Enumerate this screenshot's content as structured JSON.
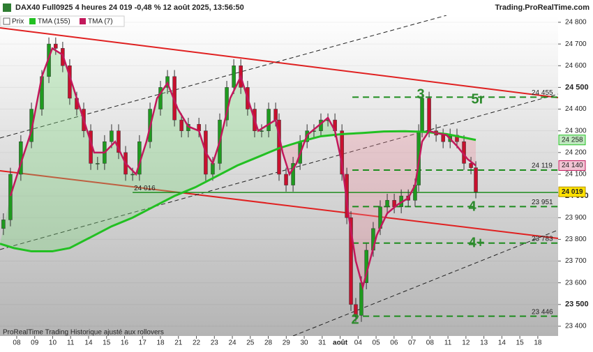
{
  "header": {
    "title": "DAX40 Full0925 4 heures 24 019 -0,48 % 12 août 2025, 13:56:50",
    "site": "Trading.ProRealTime.com"
  },
  "footer": "ProRealTime Trading  Historique ajusté aux rollovers",
  "chart_data": {
    "type": "candlestick",
    "name": "Prix",
    "up_color": "#1f9a1f",
    "down_color": "#c8102e",
    "x": [
      -0.74,
      -0.35,
      0.23,
      0.82,
      1.4,
      1.79,
      2.17,
      2.56,
      2.95,
      3.34,
      3.73,
      4.12,
      4.5,
      4.89,
      5.28,
      5.67,
      6.06,
      6.45,
      6.83,
      7.42,
      8.0,
      8.39,
      8.78,
      9.17,
      9.55,
      10.14,
      10.52,
      10.91,
      11.3,
      11.69,
      12.08,
      12.47,
      12.85,
      13.24,
      13.63,
      14.02,
      14.41,
      14.6,
      14.99,
      15.38,
      15.77,
      16.16,
      16.54,
      16.93,
      17.32,
      17.71,
      18.1,
      18.37,
      18.6,
      18.87,
      19.18,
      19.46,
      19.84,
      20.23,
      20.62,
      21.01,
      21.4,
      21.79,
      22.17,
      22.37,
      22.56,
      22.95,
      23.34,
      23.73,
      24.12,
      24.5,
      24.89,
      25.28,
      25.55
    ],
    "open": [
      23850,
      23890,
      24100,
      24250,
      24400,
      24550,
      24700,
      24680,
      24600,
      24450,
      24400,
      24300,
      24150,
      24150,
      24250,
      24300,
      24200,
      24100,
      24100,
      24250,
      24400,
      24500,
      24550,
      24350,
      24300,
      24330,
      24300,
      24100,
      24150,
      24350,
      24500,
      24600,
      24500,
      24400,
      24300,
      24300,
      24400,
      24350,
      24100,
      24050,
      24150,
      24250,
      24300,
      24300,
      24350,
      24350,
      24300,
      24100,
      23900,
      23500,
      23450,
      23600,
      23750,
      23850,
      23950,
      23980,
      23950,
      24000,
      23980,
      24050,
      24300,
      24450,
      24300,
      24280,
      24250,
      24280,
      24250,
      24150,
      24130
    ],
    "high": [
      23920,
      24130,
      24280,
      24430,
      24580,
      24730,
      24730,
      24710,
      24630,
      24480,
      24430,
      24330,
      24180,
      24280,
      24330,
      24330,
      24230,
      24130,
      24280,
      24430,
      24530,
      24580,
      24580,
      24380,
      24360,
      24360,
      24330,
      24180,
      24380,
      24530,
      24630,
      24630,
      24530,
      24430,
      24330,
      24430,
      24430,
      24380,
      24130,
      24180,
      24280,
      24330,
      24330,
      24380,
      24380,
      24380,
      24330,
      24130,
      23930,
      23530,
      23630,
      23780,
      23880,
      23980,
      24010,
      24010,
      24030,
      24030,
      24080,
      24330,
      24480,
      24480,
      24330,
      24310,
      24310,
      24310,
      24280,
      24180,
      24160
    ],
    "low": [
      23820,
      23860,
      24070,
      24220,
      24370,
      24520,
      24650,
      24570,
      24420,
      24370,
      24270,
      24120,
      24120,
      24120,
      24220,
      24170,
      24070,
      24070,
      24070,
      24220,
      24370,
      24470,
      24320,
      24270,
      24270,
      24270,
      24070,
      24070,
      24120,
      24320,
      24470,
      24470,
      24370,
      24270,
      24270,
      24270,
      24320,
      24070,
      24020,
      24020,
      24120,
      24220,
      24270,
      24270,
      24320,
      24270,
      24070,
      23870,
      23470,
      23420,
      23420,
      23570,
      23720,
      23820,
      23920,
      23920,
      23920,
      23950,
      23950,
      24020,
      24270,
      24270,
      24250,
      24220,
      24220,
      24220,
      24120,
      24100,
      23989
    ],
    "close": [
      23890,
      24100,
      24250,
      24400,
      24550,
      24700,
      24680,
      24600,
      24450,
      24400,
      24300,
      24150,
      24150,
      24250,
      24300,
      24200,
      24100,
      24100,
      24250,
      24400,
      24500,
      24550,
      24350,
      24300,
      24330,
      24300,
      24100,
      24150,
      24350,
      24500,
      24600,
      24500,
      24400,
      24300,
      24300,
      24400,
      24350,
      24100,
      24050,
      24150,
      24250,
      24300,
      24300,
      24350,
      24350,
      24300,
      24100,
      23900,
      23500,
      23450,
      23600,
      23750,
      23850,
      23950,
      23980,
      23950,
      24000,
      23980,
      24050,
      24300,
      24450,
      24300,
      24280,
      24250,
      24280,
      24250,
      24150,
      24130,
      24019
    ],
    "close_last_label": "24 019",
    "series": [
      {
        "name": "TMA (155)",
        "color": "#22c022",
        "box_color": "#bfe8bf",
        "last_label": "24 258",
        "x": [
          -0.93,
          -0.16,
          0.82,
          1.98,
          2.95,
          4.12,
          5.28,
          6.45,
          7.61,
          8.78,
          9.94,
          11.11,
          12.27,
          13.44,
          14.6,
          15.77,
          16.93,
          18.1,
          19.26,
          20.43,
          21.59,
          22.76,
          23.92,
          24.7,
          25.55
        ],
        "values": [
          23780,
          23760,
          23745,
          23745,
          23760,
          23810,
          23860,
          23900,
          23950,
          24000,
          24040,
          24090,
          24140,
          24180,
          24220,
          24250,
          24275,
          24285,
          24290,
          24297,
          24298,
          24295,
          24285,
          24272,
          24258
        ]
      },
      {
        "name": "TMA (7)",
        "color": "#c2185b",
        "box_color": "#f2c4d4",
        "last_label": "24 140",
        "x": [
          -0.35,
          0.23,
          0.82,
          1.4,
          1.98,
          2.56,
          3.15,
          3.73,
          4.31,
          4.89,
          5.48,
          6.06,
          6.64,
          7.22,
          7.81,
          8.39,
          8.97,
          9.55,
          10.14,
          10.52,
          10.91,
          11.3,
          11.88,
          12.47,
          12.85,
          13.44,
          14.02,
          14.41,
          14.8,
          15.18,
          15.57,
          16.16,
          16.74,
          17.32,
          17.71,
          18.1,
          18.49,
          18.87,
          19.26,
          19.65,
          20.04,
          20.62,
          21.2,
          21.79,
          22.17,
          22.56,
          22.95,
          23.34,
          23.92,
          24.5,
          25.09,
          25.55
        ],
        "values": [
          24000,
          24150,
          24300,
          24550,
          24680,
          24650,
          24500,
          24350,
          24200,
          24200,
          24250,
          24150,
          24100,
          24250,
          24450,
          24520,
          24400,
          24320,
          24300,
          24200,
          24150,
          24250,
          24450,
          24550,
          24450,
          24300,
          24330,
          24350,
          24200,
          24100,
          24150,
          24280,
          24320,
          24360,
          24300,
          24150,
          23900,
          23700,
          23580,
          23700,
          23820,
          23920,
          23960,
          23990,
          24050,
          24250,
          24300,
          24290,
          24280,
          24230,
          24170,
          24140
        ]
      }
    ],
    "xlim": [
      -0.93,
      30.13
    ],
    "xticks": [
      {
        "value": 0,
        "label": "08"
      },
      {
        "value": 1,
        "label": "09"
      },
      {
        "value": 2,
        "label": "10"
      },
      {
        "value": 3,
        "label": "11"
      },
      {
        "value": 4,
        "label": "14"
      },
      {
        "value": 5,
        "label": "15"
      },
      {
        "value": 6,
        "label": "16"
      },
      {
        "value": 7,
        "label": "17"
      },
      {
        "value": 8,
        "label": "18"
      },
      {
        "value": 9,
        "label": "21"
      },
      {
        "value": 10,
        "label": "22"
      },
      {
        "value": 11,
        "label": "23"
      },
      {
        "value": 12,
        "label": "24"
      },
      {
        "value": 13,
        "label": "25"
      },
      {
        "value": 14,
        "label": "28"
      },
      {
        "value": 15,
        "label": "29"
      },
      {
        "value": 16,
        "label": "30"
      },
      {
        "value": 17,
        "label": "31"
      },
      {
        "value": 18,
        "label": "août"
      },
      {
        "value": 19,
        "label": "04"
      },
      {
        "value": 20,
        "label": "05"
      },
      {
        "value": 21,
        "label": "06"
      },
      {
        "value": 22,
        "label": "07"
      },
      {
        "value": 23,
        "label": "08"
      },
      {
        "value": 24,
        "label": "11"
      },
      {
        "value": 25,
        "label": "12"
      },
      {
        "value": 26,
        "label": "13"
      },
      {
        "value": 27,
        "label": "14"
      },
      {
        "value": 28,
        "label": "15"
      },
      {
        "value": 29,
        "label": "18"
      }
    ],
    "ylim": [
      23355,
      24832
    ],
    "yticks": [
      {
        "value": 23400,
        "label": "23 400"
      },
      {
        "value": 23500,
        "label": "23 500"
      },
      {
        "value": 23600,
        "label": "23 600"
      },
      {
        "value": 23700,
        "label": "23 700"
      },
      {
        "value": 23800,
        "label": "23 800"
      },
      {
        "value": 23900,
        "label": "23 900"
      },
      {
        "value": 24000,
        "label": "24 000"
      },
      {
        "value": 24100,
        "label": "24 100"
      },
      {
        "value": 24200,
        "label": "24 200"
      },
      {
        "value": 24300,
        "label": "24 300"
      },
      {
        "value": 24400,
        "label": "24 400"
      },
      {
        "value": 24500,
        "label": "24 500"
      },
      {
        "value": 24600,
        "label": "24 600"
      },
      {
        "value": 24700,
        "label": "24 700"
      },
      {
        "value": 24800,
        "label": "24 800"
      }
    ],
    "levels": [
      {
        "value": 24455,
        "label": "24 455",
        "x_start": 18.68,
        "style": "dashed"
      },
      {
        "value": 24119,
        "label": "24 119",
        "x_start": 18.68,
        "style": "dashed"
      },
      {
        "value": 23951,
        "label": "23 951",
        "x_start": 18.68,
        "style": "dashed"
      },
      {
        "value": 23783,
        "label": "23 783",
        "x_start": 18.68,
        "style": "dashed"
      },
      {
        "value": 23446,
        "label": "23 446",
        "x_start": 18.68,
        "style": "dashed"
      },
      {
        "value": 24016,
        "label": "24 016",
        "x_start": 6.45,
        "style": "solid"
      }
    ],
    "annotations": [
      "3",
      "5r",
      "4",
      "4+",
      "2"
    ]
  }
}
